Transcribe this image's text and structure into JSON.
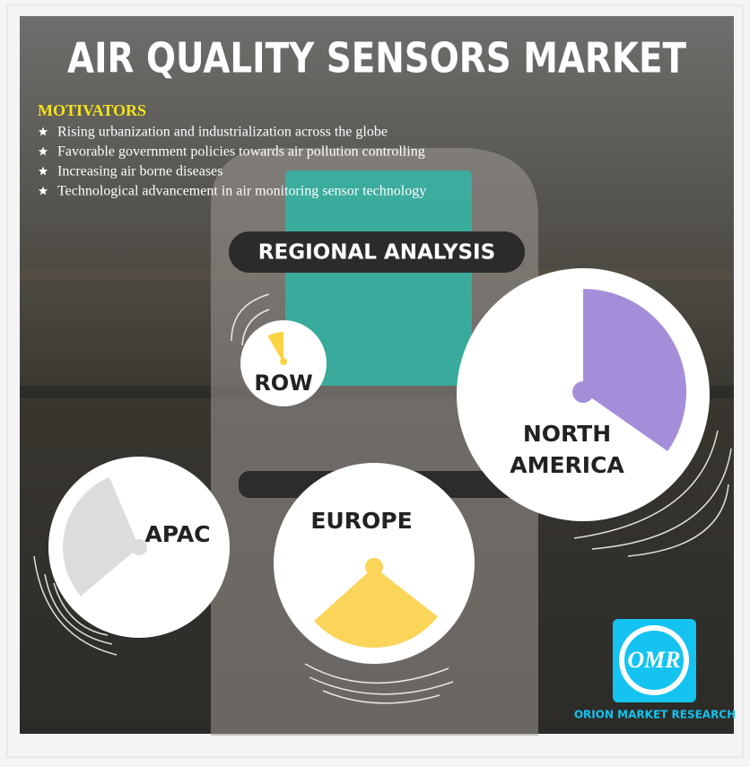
{
  "title": "AIR QUALITY SENSORS MARKET",
  "motivators": {
    "heading": "MOTIVATORS",
    "items": [
      "Rising urbanization and industrialization across the globe",
      "Favorable government policies towards air pollution controlling",
      "Increasing air borne diseases",
      "Technological advancement in air monitoring sensor technology"
    ]
  },
  "regional_analysis": {
    "heading": "REGIONAL ANALYSIS",
    "regions": [
      {
        "label": "ROW"
      },
      {
        "label": "NORTH AMERICA",
        "lines": [
          "NORTH",
          "AMERICA"
        ]
      },
      {
        "label": "APAC"
      },
      {
        "label": "EUROPE"
      }
    ]
  },
  "logo": {
    "initials": "OMR",
    "name": "ORION MARKET RESEARCH"
  }
}
